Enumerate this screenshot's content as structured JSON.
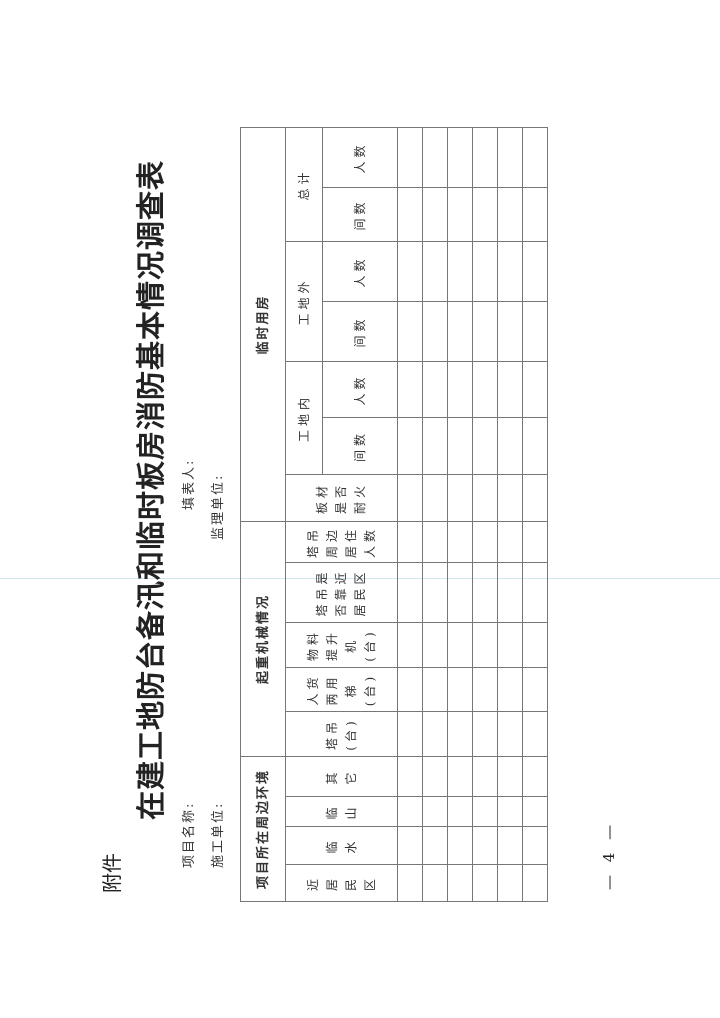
{
  "attachment_label": "附件",
  "title": "在建工地防台备汛和临时板房消防基本情况调查表",
  "fields": {
    "project_name": "项目名称:",
    "construction_unit": "施工单位:",
    "filler": "填表人:",
    "supervision_unit": "监理单位:"
  },
  "table": {
    "groups": {
      "environment": "项目所在周边环境",
      "lifting": "起重机械情况",
      "temp_housing": "临时用房"
    },
    "environment_cols": [
      "近\n居\n民\n区",
      "临\n水",
      "临\n山",
      "其\n它"
    ],
    "lifting_cols": [
      "塔吊\n(台)",
      "人货\n两用\n梯\n(台)",
      "物料\n提升\n机\n(台)",
      "塔吊是\n否靠近\n居民区",
      "塔吊\n周边\n居住\n人数"
    ],
    "fire_col": "板材\n是否\n耐火",
    "housing_sub": [
      "工地内",
      "工地外",
      "总计"
    ],
    "housing_leaf": [
      "间数",
      "人数"
    ]
  },
  "page_number": "— 4 —"
}
